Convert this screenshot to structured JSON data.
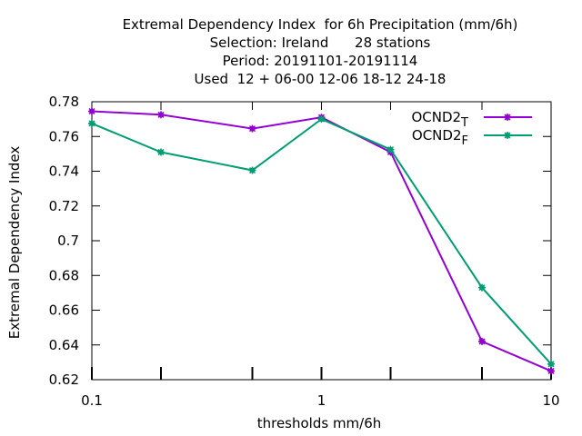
{
  "chart_data": {
    "type": "line",
    "title_lines": [
      "Extremal Dependency Index  for 6h Precipitation (mm/6h)",
      "Selection: Ireland      28 stations",
      "Period: 20191101-20191114",
      "Used  12 + 06-00 12-06 18-12 24-18"
    ],
    "xlabel": "thresholds mm/6h",
    "ylabel": "Extremal Dependency Index",
    "x_scale": "log",
    "xlim": [
      0.1,
      10
    ],
    "ylim": [
      0.62,
      0.78
    ],
    "x_ticks": [
      {
        "value": 0.1,
        "label": "0.1"
      },
      {
        "value": 0.2,
        "label": ""
      },
      {
        "value": 0.5,
        "label": ""
      },
      {
        "value": 1,
        "label": "1"
      },
      {
        "value": 2,
        "label": ""
      },
      {
        "value": 5,
        "label": ""
      },
      {
        "value": 10,
        "label": "10"
      }
    ],
    "y_ticks": [
      {
        "value": 0.62,
        "label": "0.62"
      },
      {
        "value": 0.64,
        "label": "0.64"
      },
      {
        "value": 0.66,
        "label": "0.66"
      },
      {
        "value": 0.68,
        "label": "0.68"
      },
      {
        "value": 0.7,
        "label": "0.7"
      },
      {
        "value": 0.72,
        "label": "0.72"
      },
      {
        "value": 0.74,
        "label": "0.74"
      },
      {
        "value": 0.76,
        "label": "0.76"
      },
      {
        "value": 0.78,
        "label": "0.78"
      }
    ],
    "grid": false,
    "legend_position": "top-right",
    "x": [
      0.1,
      0.2,
      0.5,
      1,
      2,
      5,
      10
    ],
    "series": [
      {
        "name": "OCND2",
        "subscript": "T",
        "color": "#9400d3",
        "values": [
          0.7745,
          0.7725,
          0.7645,
          0.771,
          0.751,
          0.642,
          0.625
        ]
      },
      {
        "name": "OCND2",
        "subscript": "F",
        "color": "#009e73",
        "values": [
          0.7675,
          0.751,
          0.7405,
          0.77,
          0.7525,
          0.673,
          0.629
        ]
      }
    ]
  }
}
